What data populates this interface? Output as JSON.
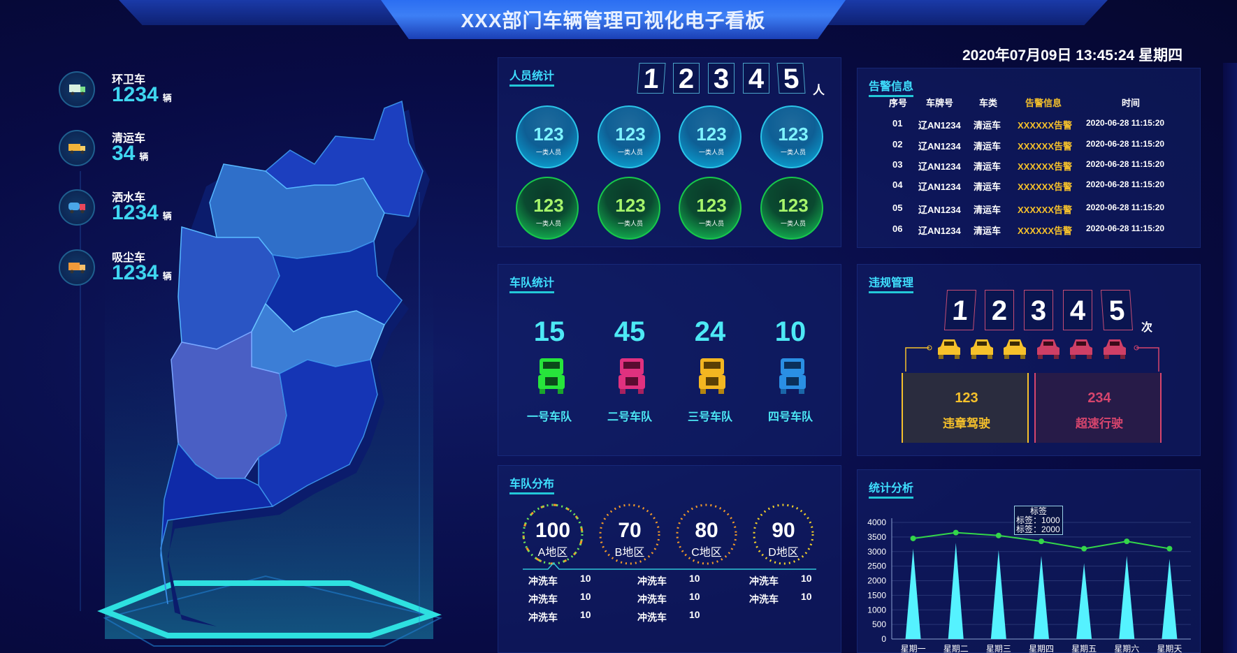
{
  "header": {
    "title": "XXX部门车辆管理可视化电子看板",
    "datetime": "2020年07月09日  13:45:24  星期四"
  },
  "vehicles": [
    {
      "name": "环卫车",
      "count": "1234",
      "unit": "辆"
    },
    {
      "name": "清运车",
      "count": "34",
      "unit": "辆"
    },
    {
      "name": "洒水车",
      "count": "1234",
      "unit": "辆"
    },
    {
      "name": "吸尘车",
      "count": "1234",
      "unit": "辆"
    }
  ],
  "personnel": {
    "title": "人员统计",
    "digits": [
      "1",
      "2",
      "3",
      "4",
      "5"
    ],
    "unit": "人",
    "circles": [
      {
        "value": "123",
        "label": "一类人员"
      },
      {
        "value": "123",
        "label": "一类人员"
      },
      {
        "value": "123",
        "label": "一类人员"
      },
      {
        "value": "123",
        "label": "一类人员"
      },
      {
        "value": "123",
        "label": "一类人员"
      },
      {
        "value": "123",
        "label": "一类人员"
      },
      {
        "value": "123",
        "label": "一类人员"
      },
      {
        "value": "123",
        "label": "一类人员"
      }
    ]
  },
  "alarms": {
    "title": "告警信息",
    "headers": [
      "序号",
      "车牌号",
      "车类",
      "告警信息",
      "时间"
    ],
    "rows": [
      {
        "no": "01",
        "plate": "辽AN1234",
        "type": "清运车",
        "info": "XXXXXX告警",
        "time": "2020-06-28  11:15:20"
      },
      {
        "no": "02",
        "plate": "辽AN1234",
        "type": "清运车",
        "info": "XXXXXX告警",
        "time": "2020-06-28  11:15:20"
      },
      {
        "no": "03",
        "plate": "辽AN1234",
        "type": "清运车",
        "info": "XXXXXX告警",
        "time": "2020-06-28  11:15:20"
      },
      {
        "no": "04",
        "plate": "辽AN1234",
        "type": "清运车",
        "info": "XXXXXX告警",
        "time": "2020-06-28  11:15:20"
      },
      {
        "no": "05",
        "plate": "辽AN1234",
        "type": "清运车",
        "info": "XXXXXX告警",
        "time": "2020-06-28  11:15:20"
      },
      {
        "no": "06",
        "plate": "辽AN1234",
        "type": "清运车",
        "info": "XXXXXX告警",
        "time": "2020-06-28  11:15:20"
      }
    ]
  },
  "fleet": {
    "title": "车队统计",
    "teams": [
      {
        "count": "15",
        "name": "一号车队",
        "color": "#27e53b"
      },
      {
        "count": "45",
        "name": "二号车队",
        "color": "#e0317f"
      },
      {
        "count": "24",
        "name": "三号车队",
        "color": "#f3b621"
      },
      {
        "count": "10",
        "name": "四号车队",
        "color": "#2a8fe4"
      }
    ]
  },
  "violations": {
    "title": "违规管理",
    "digits": [
      "1",
      "2",
      "3",
      "4",
      "5"
    ],
    "unit": "次",
    "boxes": [
      {
        "value": "123",
        "label": "违章驾驶",
        "color": "#f6c12b"
      },
      {
        "value": "234",
        "label": "超速行驶",
        "color": "#d7456d"
      }
    ]
  },
  "distribution": {
    "title": "车队分布",
    "regions": [
      {
        "value": "100",
        "label": "A地区"
      },
      {
        "value": "70",
        "label": "B地区"
      },
      {
        "value": "80",
        "label": "C地区"
      },
      {
        "value": "90",
        "label": "D地区"
      }
    ],
    "details": [
      [
        {
          "name": "冲洗车",
          "value": "10"
        },
        {
          "name": "冲洗车",
          "value": "10"
        },
        {
          "name": "冲洗车",
          "value": "10"
        }
      ],
      [
        {
          "name": "冲洗车",
          "value": "10"
        },
        {
          "name": "冲洗车",
          "value": "10"
        },
        {
          "name": "冲洗车",
          "value": "10"
        }
      ],
      [
        {
          "name": "冲洗车",
          "value": "10"
        },
        {
          "name": "冲洗车",
          "value": "10"
        }
      ]
    ]
  },
  "analysis": {
    "title": "统计分析",
    "tooltip": {
      "title": "标签",
      "line1": "标签：1000",
      "line2": "标签：2000"
    }
  },
  "chart_data": {
    "type": "bar",
    "title": "统计分析",
    "categories": [
      "星期一",
      "星期二",
      "星期三",
      "星期四",
      "星期五",
      "星期六",
      "星期天"
    ],
    "series": [
      {
        "name": "bars",
        "type": "bar",
        "values": [
          3100,
          3300,
          3050,
          2850,
          2600,
          2850,
          2750
        ],
        "color": "#55f2ff"
      },
      {
        "name": "line",
        "type": "line",
        "values": [
          3450,
          3650,
          3550,
          3350,
          3100,
          3350,
          3100
        ],
        "color": "#34d64a"
      }
    ],
    "ylim": [
      0,
      4000
    ],
    "yticks": [
      0,
      500,
      1000,
      1500,
      2000,
      2500,
      3000,
      3500,
      4000
    ],
    "grid": true
  }
}
